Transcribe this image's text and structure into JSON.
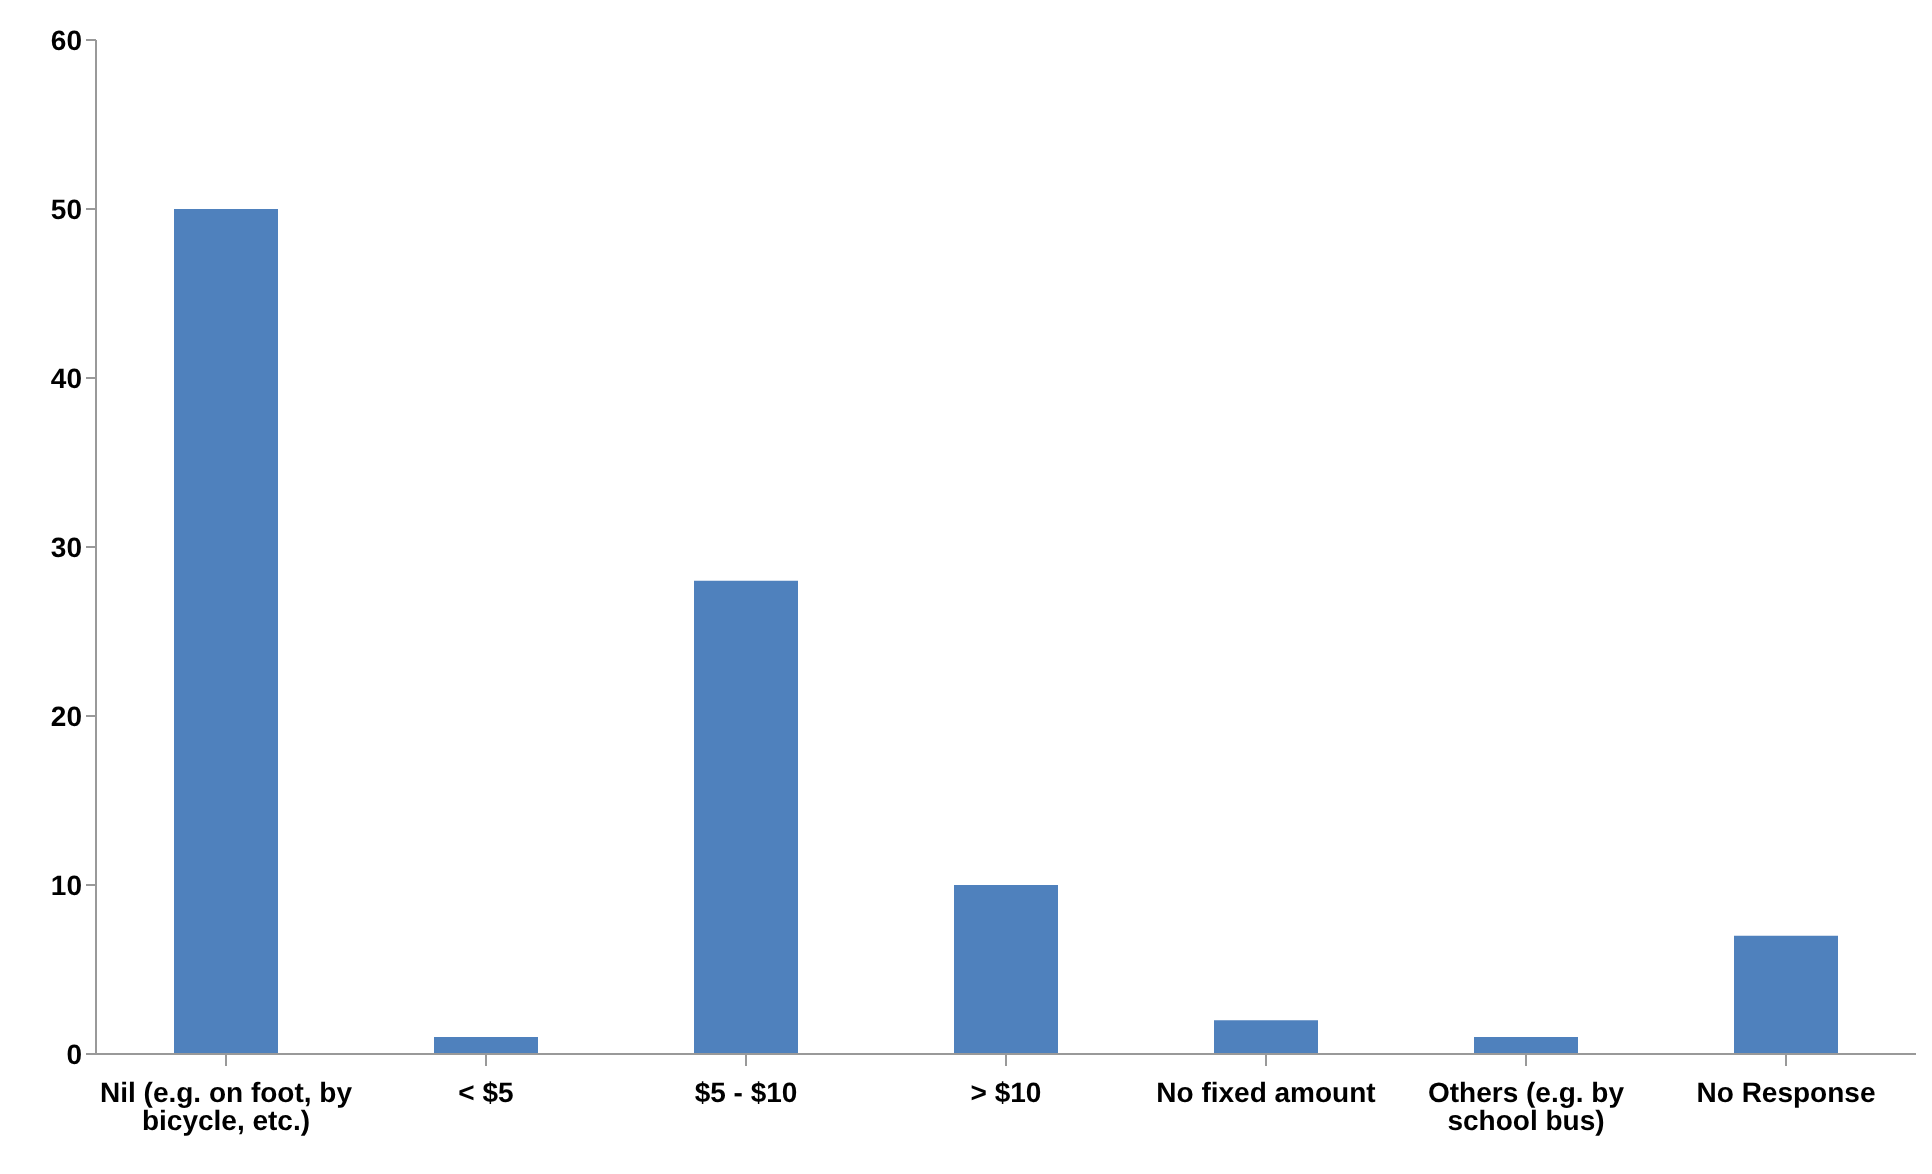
{
  "chart_data": {
    "type": "bar",
    "categories": [
      "Nil (e.g. on foot, by bicycle, etc.)",
      "< $5",
      "$5 - $10",
      "> $10",
      "No fixed amount",
      "Others (e.g. by school bus)",
      "No Response"
    ],
    "values": [
      50,
      1,
      28,
      10,
      2,
      1,
      7
    ],
    "color": "#4f81bd",
    "ylim": [
      0,
      60
    ],
    "yticks": [
      0,
      10,
      20,
      30,
      40,
      50,
      60
    ],
    "grid": false,
    "legend": false
  }
}
